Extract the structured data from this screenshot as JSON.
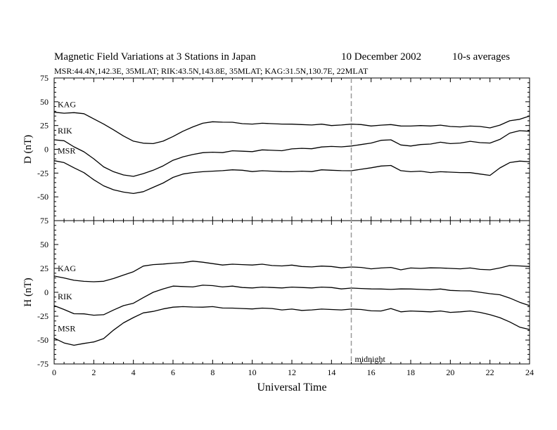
{
  "header": {
    "title": "Magnetic Field Variations at 3 Stations in Japan",
    "date": "10 December 2002",
    "averaging": "10-s averages",
    "stations": "MSR:44.4N,142.3E, 35MLAT;  RIK:43.5N,143.8E, 35MLAT;  KAG:31.5N,130.7E, 22MLAT"
  },
  "chart_data": {
    "type": "line",
    "title": "Magnetic Field Variations at 3 Stations in Japan",
    "xlabel": "Universal Time",
    "xlim": [
      0,
      24
    ],
    "xticks": [
      "0",
      "2",
      "4",
      "6",
      "8",
      "10",
      "12",
      "14",
      "16",
      "18",
      "20",
      "22",
      "24"
    ],
    "grid": false,
    "annotation": {
      "text": "midnight",
      "x": 15
    },
    "panels": [
      {
        "ylabel": "D (nT)",
        "ylim": [
          -75,
          75
        ],
        "yticks": [
          "75",
          "50",
          "25",
          "0",
          "-25",
          "-50",
          "-75"
        ],
        "series": [
          {
            "name": "KAG",
            "x": [
              0,
              0.5,
              1,
              1.5,
              2,
              2.5,
              3,
              3.5,
              4,
              4.5,
              5,
              5.5,
              6,
              6.5,
              7,
              7.5,
              8,
              8.5,
              9,
              9.5,
              10,
              10.5,
              11,
              11.5,
              12,
              12.5,
              13,
              13.5,
              14,
              14.5,
              15,
              15.5,
              16,
              16.5,
              17,
              17.5,
              18,
              18.5,
              19,
              19.5,
              20,
              20.5,
              21,
              21.5,
              22,
              22.5,
              23,
              23.5,
              24
            ],
            "y": [
              39,
              38,
              39,
              37,
              32,
              27,
              20,
              14,
              9,
              6,
              6,
              9,
              13,
              19,
              24,
              27,
              29,
              29,
              28,
              27,
              27,
              27,
              27,
              27,
              26,
              26,
              26,
              26,
              25,
              26,
              26,
              26,
              25,
              25,
              26,
              25,
              24,
              25,
              25,
              25,
              24,
              24,
              24,
              24,
              23,
              25,
              30,
              32,
              35
            ]
          },
          {
            "name": "RIK",
            "x": [
              0,
              0.5,
              1,
              1.5,
              2,
              2.5,
              3,
              3.5,
              4,
              4.5,
              5,
              5.5,
              6,
              6.5,
              7,
              7.5,
              8,
              8.5,
              9,
              9.5,
              10,
              10.5,
              11,
              11.5,
              12,
              12.5,
              13,
              13.5,
              14,
              14.5,
              15,
              15.5,
              16,
              16.5,
              17,
              17.5,
              18,
              18.5,
              19,
              19.5,
              20,
              20.5,
              21,
              21.5,
              22,
              22.5,
              23,
              23.5,
              24
            ],
            "y": [
              10,
              9,
              3,
              -3,
              -10,
              -18,
              -24,
              -27,
              -28,
              -26,
              -22,
              -17,
              -12,
              -8,
              -5,
              -4,
              -3,
              -3,
              -2,
              -2,
              -2,
              -1,
              -1,
              -1,
              0,
              1,
              1,
              2,
              3,
              3,
              3,
              5,
              7,
              9,
              10,
              5,
              3,
              5,
              6,
              7,
              6,
              7,
              8,
              7,
              7,
              10,
              17,
              20,
              19
            ]
          },
          {
            "name": "MSR",
            "x": [
              0,
              0.5,
              1,
              1.5,
              2,
              2.5,
              3,
              3.5,
              4,
              4.5,
              5,
              5.5,
              6,
              6.5,
              7,
              7.5,
              8,
              8.5,
              9,
              9.5,
              10,
              10.5,
              11,
              11.5,
              12,
              12.5,
              13,
              13.5,
              14,
              14.5,
              15,
              15.5,
              16,
              16.5,
              17,
              17.5,
              18,
              18.5,
              19,
              19.5,
              20,
              20.5,
              21,
              21.5,
              22,
              22.5,
              23,
              23.5,
              24
            ],
            "y": [
              -12,
              -14,
              -19,
              -25,
              -32,
              -38,
              -43,
              -45,
              -46,
              -45,
              -40,
              -35,
              -30,
              -26,
              -24,
              -24,
              -23,
              -22,
              -22,
              -22,
              -23,
              -23,
              -23,
              -23,
              -24,
              -23,
              -23,
              -22,
              -22,
              -22,
              -23,
              -21,
              -19,
              -18,
              -17,
              -22,
              -24,
              -23,
              -24,
              -24,
              -24,
              -24,
              -25,
              -26,
              -27,
              -20,
              -14,
              -12,
              -13
            ]
          }
        ]
      },
      {
        "ylabel": "H (nT)",
        "ylim": [
          -75,
          75
        ],
        "yticks": [
          "75",
          "50",
          "25",
          "0",
          "-25",
          "-50",
          "-75"
        ],
        "series": [
          {
            "name": "KAG",
            "x": [
              0,
              0.5,
              1,
              1.5,
              2,
              2.5,
              3,
              3.5,
              4,
              4.5,
              5,
              5.5,
              6,
              6.5,
              7,
              7.5,
              8,
              8.5,
              9,
              9.5,
              10,
              10.5,
              11,
              11.5,
              12,
              12.5,
              13,
              13.5,
              14,
              14.5,
              15,
              15.5,
              16,
              16.5,
              17,
              17.5,
              18,
              18.5,
              19,
              19.5,
              20,
              20.5,
              21,
              21.5,
              22,
              22.5,
              23,
              23.5,
              24
            ],
            "y": [
              17,
              15,
              13,
              11,
              11,
              12,
              14,
              18,
              22,
              27,
              29,
              30,
              30,
              31,
              33,
              31,
              30,
              29,
              29,
              29,
              29,
              29,
              28,
              28,
              28,
              27,
              27,
              27,
              27,
              26,
              26,
              26,
              25,
              25,
              26,
              24,
              25,
              25,
              26,
              25,
              25,
              25,
              25,
              24,
              24,
              25,
              28,
              28,
              27
            ]
          },
          {
            "name": "RIK",
            "x": [
              0,
              0.5,
              1,
              1.5,
              2,
              2.5,
              3,
              3.5,
              4,
              4.5,
              5,
              5.5,
              6,
              6.5,
              7,
              7.5,
              8,
              8.5,
              9,
              9.5,
              10,
              10.5,
              11,
              11.5,
              12,
              12.5,
              13,
              13.5,
              14,
              14.5,
              15,
              15.5,
              16,
              16.5,
              17,
              17.5,
              18,
              18.5,
              19,
              19.5,
              20,
              20.5,
              21,
              21.5,
              22,
              22.5,
              23,
              23.5,
              24
            ],
            "y": [
              -14,
              -18,
              -22,
              -23,
              -24,
              -23,
              -19,
              -14,
              -11,
              -6,
              0,
              4,
              6,
              6,
              6,
              7,
              7,
              6,
              6,
              5,
              5,
              5,
              5,
              5,
              5,
              5,
              5,
              5,
              5,
              4,
              4,
              4,
              4,
              3,
              3,
              4,
              3,
              3,
              3,
              3,
              2,
              2,
              1,
              0,
              -1,
              -3,
              -6,
              -10,
              -14
            ]
          },
          {
            "name": "MSR",
            "x": [
              0,
              0.5,
              1,
              1.5,
              2,
              2.5,
              3,
              3.5,
              4,
              4.5,
              5,
              5.5,
              6,
              6.5,
              7,
              7.5,
              8,
              8.5,
              9,
              9.5,
              10,
              10.5,
              11,
              11.5,
              12,
              12.5,
              13,
              13.5,
              14,
              14.5,
              15,
              15.5,
              16,
              16.5,
              17,
              17.5,
              18,
              18.5,
              19,
              19.5,
              20,
              20.5,
              21,
              21.5,
              22,
              22.5,
              23,
              23.5,
              24
            ],
            "y": [
              -48,
              -53,
              -55,
              -54,
              -52,
              -48,
              -40,
              -32,
              -26,
              -22,
              -20,
              -17,
              -16,
              -15,
              -15,
              -16,
              -15,
              -16,
              -17,
              -17,
              -17,
              -17,
              -17,
              -18,
              -18,
              -19,
              -18,
              -18,
              -18,
              -18,
              -18,
              -18,
              -19,
              -20,
              -17,
              -20,
              -20,
              -20,
              -20,
              -20,
              -21,
              -20,
              -20,
              -21,
              -23,
              -27,
              -31,
              -36,
              -39
            ]
          }
        ]
      }
    ]
  }
}
